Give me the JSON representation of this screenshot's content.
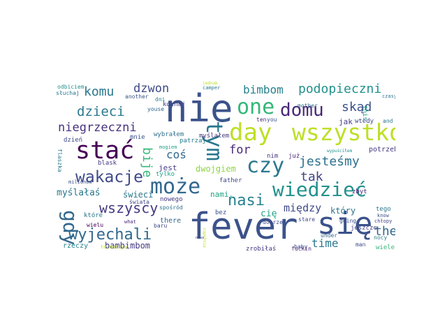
{
  "words": {
    "fever": {
      "text": "fever",
      "color": "#3b528b"
    },
    "nie": {
      "text": "nie",
      "color": "#3b528b"
    },
    "sie": {
      "text": "się",
      "color": "#3b528b"
    },
    "wszystko": {
      "text": "wszystko",
      "color": "#bddf26"
    },
    "day": {
      "text": "day",
      "color": "#bddf26"
    },
    "one": {
      "text": "one",
      "color": "#35b779"
    },
    "stac": {
      "text": "stać",
      "color": "#440154"
    },
    "moze": {
      "text": "może",
      "color": "#31688e"
    },
    "wiedziec": {
      "text": "wiedzieć",
      "color": "#21918c"
    },
    "czy": {
      "text": "czy",
      "color": "#2a788e"
    },
    "domu": {
      "text": "domu",
      "color": "#482878"
    },
    "tym": {
      "text": "tym",
      "color": "#2a788e"
    },
    "gdy": {
      "text": "gdy",
      "color": "#31688e"
    },
    "wakacje": {
      "text": "wakacje",
      "color": "#3e4989"
    },
    "wyjechali": {
      "text": "wyjechali",
      "color": "#31688e"
    },
    "wszyscy": {
      "text": "wszyscy",
      "color": "#443a83"
    },
    "nasi": {
      "text": "nasi",
      "color": "#26828e"
    },
    "dzieci": {
      "text": "dzieci",
      "color": "#2a788e"
    },
    "niegrzeczni": {
      "text": "niegrzeczni",
      "color": "#46327e"
    },
    "podopieczni": {
      "text": "podopieczni",
      "color": "#21918c"
    },
    "jestesmy": {
      "text": "jesteśmy",
      "color": "#2c718e"
    },
    "bije": {
      "text": "bije",
      "color": "#35b779"
    },
    "komu": {
      "text": "komu",
      "color": "#2a788e"
    },
    "dzwon": {
      "text": "dzwon",
      "color": "#3e4989"
    },
    "bimbom": {
      "text": "bimbom",
      "color": "#26828e"
    },
    "skad": {
      "text": "skąd",
      "color": "#3b528b"
    },
    "cos": {
      "text": "coś",
      "color": "#31688e"
    },
    "for": {
      "text": "for",
      "color": "#482878"
    },
    "tak": {
      "text": "tak",
      "color": "#414487"
    },
    "the": {
      "text": "the",
      "color": "#31688e"
    },
    "time": {
      "text": "time",
      "color": "#2a788e"
    },
    "miedzy": {
      "text": "między",
      "color": "#3e4989"
    },
    "bambimbom": {
      "text": "bambimbom",
      "color": "#443a83"
    },
    "myslalas": {
      "text": "myślałaś",
      "color": "#2a788e"
    },
    "dwojgiem": {
      "text": "dwojgiem",
      "color": "#8fd744"
    },
    "nami": {
      "text": "nami.",
      "color": "#20a386"
    },
    "ktory": {
      "text": "który",
      "color": "#2c718e"
    },
    "cie": {
      "text": "cię",
      "color": "#20a386"
    },
    "swieci": {
      "text": "świeci",
      "color": "#2a788e"
    },
    "jest": {
      "text": "jest",
      "color": "#443a83"
    },
    "tylko": {
      "text": "tylko",
      "color": "#20a386"
    },
    "blask": {
      "text": "blask",
      "color": "#443a83"
    },
    "wybralem": {
      "text": "wybrałem",
      "color": "#2c718e"
    },
    "myslalem": {
      "text": "myślałem",
      "color": "#46327e"
    },
    "mnie": {
      "text": "mnie",
      "color": "#3b528b"
    },
    "patrzaj": {
      "text": "patrzaj",
      "color": "#287d8e"
    },
    "mogiem": {
      "text": "mogiem",
      "color": "#1fa187"
    },
    "kochaj": {
      "text": "kochaj",
      "color": "#443a83"
    },
    "dzien": {
      "text": "dzień",
      "color": "#3e4989"
    },
    "flaszka": {
      "text": "flaszka",
      "color": "#2a788e"
    },
    "milionow": {
      "text": "milionów",
      "color": "#3b528b"
    },
    "swiata": {
      "text": "świata",
      "color": "#3e4989"
    },
    "ktore": {
      "text": "które",
      "color": "#2a788e"
    },
    "wielu": {
      "text": "wielu",
      "color": "#440154"
    },
    "rzeczy": {
      "text": "rzeczy",
      "color": "#26828e"
    },
    "telewizja": {
      "text": "telewizja",
      "color": "#b5de2b"
    },
    "what": {
      "text": "what",
      "color": "#482878"
    },
    "there": {
      "text": "there",
      "color": "#31688e"
    },
    "baru": {
      "text": "baru",
      "color": "#3e4989"
    },
    "nowego": {
      "text": "nowego",
      "color": "#443a83"
    },
    "sposrod": {
      "text": "spośród",
      "color": "#2c718e"
    },
    "father": {
      "text": "father",
      "color": "#3e4989"
    },
    "bez": {
      "text": "bez",
      "color": "#3b528b"
    },
    "zrobilas": {
      "text": "zrobiłaś",
      "color": "#443a83"
    },
    "dobrze": {
      "text": "dobrze",
      "color": "#3e4989"
    },
    "fuckin": {
      "text": "fuckin",
      "color": "#482878"
    },
    "baby": {
      "text": "baby",
      "color": "#3e4989"
    },
    "stare": {
      "text": "stare",
      "color": "#3e4989"
    },
    "going": {
      "text": "going",
      "color": "#3b528b"
    },
    "under": {
      "text": "under",
      "color": "#31688e"
    },
    "man": {
      "text": "man",
      "color": "#3e4989"
    },
    "wiele": {
      "text": "wiele",
      "color": "#35b779"
    },
    "jeszcze": {
      "text": "jeszcze",
      "color": "#414487"
    },
    "nocy": {
      "text": "nocy",
      "color": "#287d8e"
    },
    "zbyt": {
      "text": "zbyt",
      "color": "#482878"
    },
    "juz": {
      "text": "już",
      "color": "#482878"
    },
    "nim": {
      "text": "nim",
      "color": "#46327e"
    },
    "tego": {
      "text": "tego",
      "color": "#2a788e"
    },
    "chlopy": {
      "text": "chłopy",
      "color": "#414487"
    },
    "know": {
      "text": "know",
      "color": "#3b528b"
    },
    "potrzeby": {
      "text": "potrzeby",
      "color": "#443a83"
    },
    "wypuscilem": {
      "text": "wypuściłem",
      "color": "#21918c"
    },
    "this": {
      "text": "this",
      "color": "#20a386"
    },
    "jak": {
      "text": "jak",
      "color": "#443a83"
    },
    "wtedy": {
      "text": "wtedy",
      "color": "#3e4989"
    },
    "and": {
      "text": "and",
      "color": "#2a788e"
    },
    "czasy": {
      "text": "czasy",
      "color": "#2c718e"
    },
    "ten": {
      "text": "ten",
      "color": "#482878"
    },
    "you": {
      "text": "you",
      "color": "#3b528b"
    },
    "mother": {
      "text": "mother",
      "color": "#31688e"
    },
    "camper": {
      "text": "camper",
      "color": "#2a788e"
    },
    "jednak": {
      "text": "jednak",
      "color": "#bddf26"
    },
    "youse": {
      "text": "youse",
      "color": "#31688e"
    },
    "another": {
      "text": "another",
      "color": "#3b528b"
    },
    "odbiciem": {
      "text": "odbiciem",
      "color": "#21918c"
    },
    "sluchaj": {
      "text": "słuchaj",
      "color": "#2a788e"
    },
    "dni": {
      "text": "dni",
      "color": "#26828e"
    },
    "come": {
      "text": "come",
      "color": "#31688e"
    },
    "zupelnie": {
      "text": "zupełnie",
      "color": "#bddf26"
    },
    "nowa": {
      "text": "nowa",
      "color": "#3e4989"
    }
  }
}
